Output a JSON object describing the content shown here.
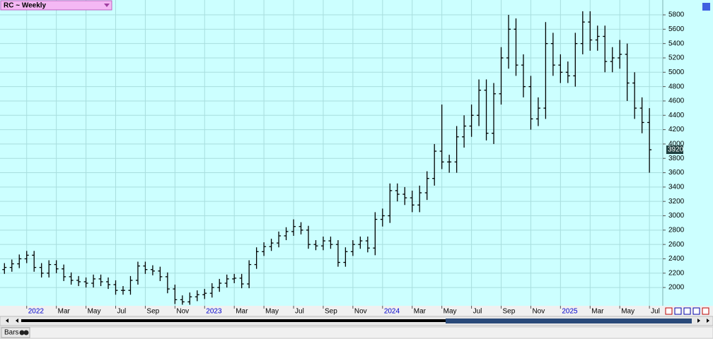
{
  "chart_data": {
    "type": "ohlc",
    "title": "RC ~ Weekly",
    "color": "#000000",
    "grid": true,
    "x": [
      -1.5,
      -1,
      -0.5,
      0,
      0.5,
      1,
      1.5,
      2,
      2.5,
      3,
      3.5,
      4,
      4.5,
      5,
      5.5,
      6,
      6.5,
      7,
      7.5,
      8,
      8.5,
      9,
      9.5,
      10,
      10.5,
      11,
      11.5,
      12,
      12.5,
      13,
      13.5,
      14,
      14.5,
      15,
      15.5,
      16,
      16.5,
      17,
      17.5,
      18,
      18.5,
      19,
      19.5,
      20,
      20.5,
      21,
      21.5,
      22,
      22.5,
      23,
      23.5,
      24,
      24.5,
      25,
      25.5,
      26,
      26.5,
      27,
      27.5,
      28,
      28.5,
      29,
      29.5,
      30,
      30.5,
      31,
      31.5,
      32,
      32.5,
      33,
      33.5,
      34,
      34.5,
      35,
      35.5,
      36,
      36.5,
      37,
      37.5,
      38,
      38.5,
      39,
      39.5,
      40,
      40.5,
      41,
      41.5,
      42
    ],
    "open": [
      2250,
      2280,
      2330,
      2400,
      2450,
      2280,
      2200,
      2320,
      2260,
      2150,
      2100,
      2080,
      2060,
      2120,
      2080,
      2040,
      1960,
      1960,
      2100,
      2300,
      2250,
      2230,
      2150,
      1980,
      1830,
      1800,
      1870,
      1900,
      1920,
      2000,
      2060,
      2120,
      2130,
      2050,
      2320,
      2500,
      2570,
      2620,
      2720,
      2780,
      2850,
      2800,
      2600,
      2580,
      2650,
      2600,
      2350,
      2500,
      2600,
      2650,
      2550,
      2950,
      3000,
      3350,
      3300,
      3250,
      3150,
      3320,
      3520,
      3900,
      3750,
      3750,
      4100,
      4250,
      4400,
      4750,
      4150,
      4700,
      5200,
      5600,
      5100,
      4800,
      4350,
      4500,
      5400,
      5100,
      5000,
      4950,
      5400,
      5700,
      5450,
      5500,
      5150,
      5200,
      5250,
      4850,
      4500,
      4300
    ],
    "high": [
      2340,
      2390,
      2460,
      2510,
      2510,
      2340,
      2380,
      2380,
      2320,
      2210,
      2160,
      2140,
      2180,
      2180,
      2140,
      2100,
      2020,
      2160,
      2360,
      2360,
      2310,
      2290,
      2210,
      2040,
      1890,
      1930,
      1960,
      1980,
      2060,
      2120,
      2180,
      2190,
      2190,
      2380,
      2560,
      2630,
      2680,
      2780,
      2840,
      2950,
      2910,
      2860,
      2660,
      2710,
      2710,
      2660,
      2560,
      2660,
      2710,
      2710,
      3050,
      3100,
      3450,
      3450,
      3400,
      3350,
      3420,
      3620,
      4000,
      4550,
      3850,
      4250,
      4400,
      4550,
      4900,
      4900,
      4850,
      5350,
      5800,
      5750,
      5250,
      4950,
      4650,
      5700,
      5550,
      5250,
      5150,
      5550,
      5850,
      5850,
      5650,
      5650,
      5350,
      5450,
      5400,
      5000,
      4650,
      4500
    ],
    "low": [
      2190,
      2220,
      2270,
      2340,
      2220,
      2140,
      2140,
      2200,
      2090,
      2040,
      2020,
      2000,
      2000,
      2020,
      1980,
      1900,
      1900,
      1900,
      2040,
      2190,
      2170,
      2090,
      1920,
      1770,
      1760,
      1760,
      1810,
      1840,
      1860,
      1940,
      2000,
      2060,
      1990,
      1990,
      2260,
      2440,
      2510,
      2560,
      2660,
      2720,
      2740,
      2540,
      2520,
      2520,
      2540,
      2290,
      2290,
      2440,
      2540,
      2490,
      2450,
      2850,
      2900,
      3200,
      3150,
      3050,
      3050,
      3220,
      3420,
      3650,
      3600,
      3600,
      3950,
      4100,
      4250,
      4050,
      4000,
      4550,
      5050,
      4950,
      4650,
      4200,
      4250,
      4350,
      4950,
      4850,
      4850,
      4800,
      5250,
      5300,
      5300,
      5000,
      5000,
      5050,
      4600,
      4350,
      4150,
      3600
    ],
    "close": [
      2280,
      2330,
      2400,
      2450,
      2280,
      2200,
      2320,
      2260,
      2150,
      2100,
      2080,
      2060,
      2120,
      2080,
      2040,
      1960,
      1960,
      2100,
      2300,
      2250,
      2230,
      2150,
      1980,
      1830,
      1800,
      1870,
      1900,
      1920,
      2000,
      2060,
      2120,
      2130,
      2050,
      2320,
      2500,
      2570,
      2620,
      2720,
      2780,
      2850,
      2800,
      2600,
      2580,
      2650,
      2600,
      2350,
      2500,
      2600,
      2650,
      2550,
      2950,
      3000,
      3350,
      3300,
      3250,
      3150,
      3320,
      3520,
      3900,
      3750,
      3750,
      4100,
      4250,
      4400,
      4750,
      4150,
      4700,
      5200,
      5600,
      5100,
      4800,
      4350,
      4500,
      5400,
      5100,
      5000,
      4950,
      5400,
      5700,
      5450,
      5500,
      5150,
      5200,
      5250,
      4850,
      4500,
      4300,
      3920
    ],
    "xlim": [
      -1.8,
      42.9
    ],
    "xticks": [
      {
        "value": 0,
        "label": "2022"
      },
      {
        "value": 2,
        "label": "Mar"
      },
      {
        "value": 4,
        "label": "May"
      },
      {
        "value": 6,
        "label": "Jul"
      },
      {
        "value": 8,
        "label": "Sep"
      },
      {
        "value": 10,
        "label": "Nov"
      },
      {
        "value": 12,
        "label": "2023"
      },
      {
        "value": 14,
        "label": "Mar"
      },
      {
        "value": 16,
        "label": "May"
      },
      {
        "value": 18,
        "label": "Jul"
      },
      {
        "value": 20,
        "label": "Sep"
      },
      {
        "value": 22,
        "label": "Nov"
      },
      {
        "value": 24,
        "label": "2024"
      },
      {
        "value": 26,
        "label": "Mar"
      },
      {
        "value": 28,
        "label": "May"
      },
      {
        "value": 30,
        "label": "Jul"
      },
      {
        "value": 32,
        "label": "Sep"
      },
      {
        "value": 34,
        "label": "Nov"
      },
      {
        "value": 36,
        "label": "2025"
      },
      {
        "value": 38,
        "label": "Mar"
      },
      {
        "value": 40,
        "label": "May"
      },
      {
        "value": 42,
        "label": "Jul"
      }
    ],
    "ylim": [
      1745,
      6007
    ],
    "yticks": [
      2000,
      2200,
      2400,
      2600,
      2800,
      3000,
      3200,
      3400,
      3600,
      3800,
      4000,
      4200,
      4400,
      4600,
      4800,
      5000,
      5200,
      5400,
      5600,
      5800
    ]
  },
  "status_bar": {
    "label": "Bars"
  }
}
